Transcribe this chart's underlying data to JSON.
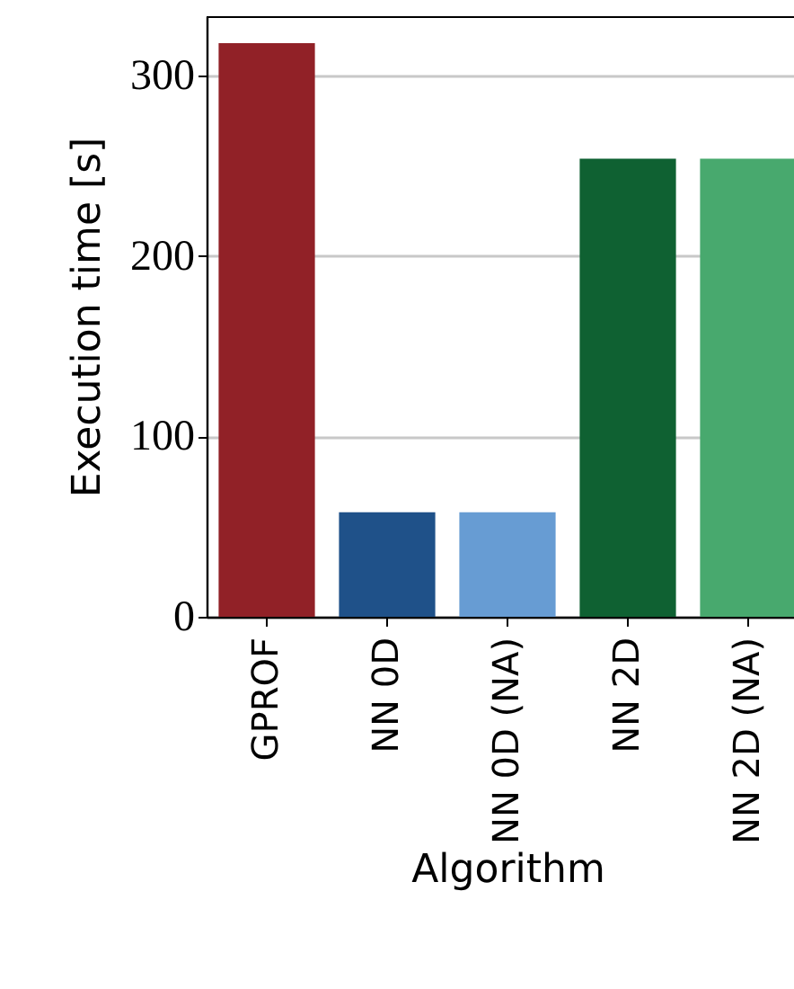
{
  "chart_data": {
    "type": "bar",
    "xlabel": "Algorithm",
    "ylabel": "Execution time [s]",
    "categories": [
      "GPROF",
      "NN 0D",
      "NN 0D (NA)",
      "NN 2D",
      "NN 2D (NA)"
    ],
    "values": [
      318,
      58,
      58,
      254,
      254
    ],
    "colors": [
      "#912127",
      "#1f5189",
      "#679cd3",
      "#0f6132",
      "#48a96e"
    ],
    "ylim": [
      0,
      333
    ],
    "yticks": [
      0,
      100,
      200,
      300
    ],
    "grid": "y"
  }
}
